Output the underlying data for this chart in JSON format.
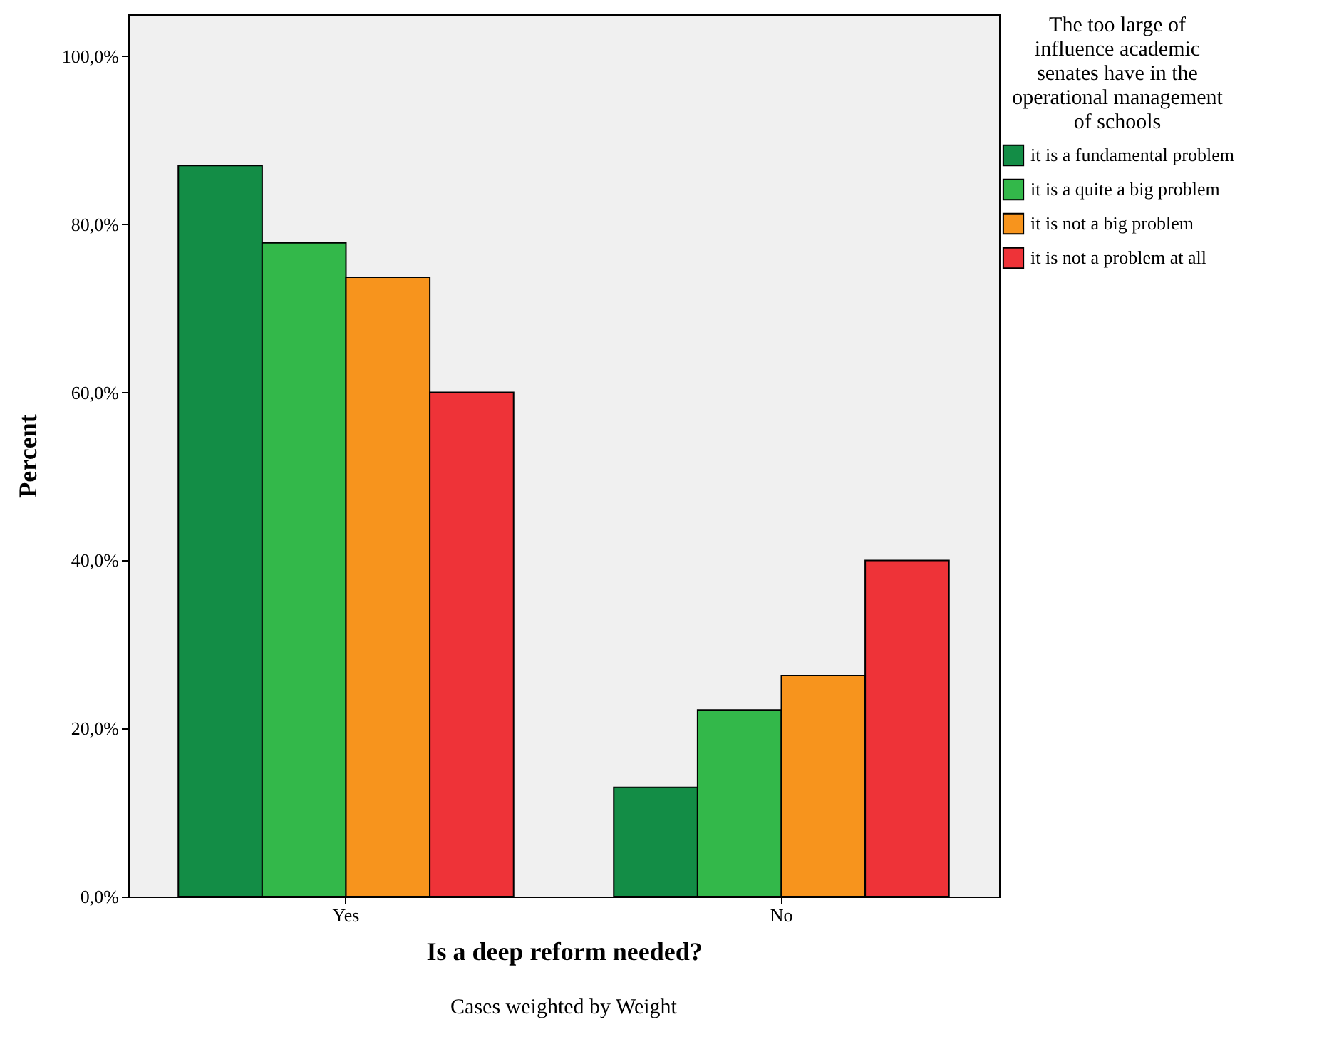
{
  "chart_data": {
    "type": "bar",
    "xlabel": "Is a deep reform needed?",
    "ylabel": "Percent",
    "legend_title": "The too large of influence academic senates have in the operational management of schools",
    "annotations": [
      "Cases weighted by Weight"
    ],
    "categories": [
      "Yes",
      "No"
    ],
    "series": [
      {
        "name": "it is a fundamental problem",
        "color": "#138d46",
        "values": [
          87.0,
          13.0
        ]
      },
      {
        "name": "it is a quite a big problem",
        "color": "#33b84a",
        "values": [
          77.8,
          22.2
        ]
      },
      {
        "name": "it is not a big problem",
        "color": "#f7941d",
        "values": [
          73.7,
          26.3
        ]
      },
      {
        "name": "it is not a problem at all",
        "color": "#ee3338",
        "values": [
          60.0,
          40.0
        ]
      }
    ],
    "ylim": [
      0,
      105
    ],
    "yticks": [
      {
        "value": 0,
        "label": "0,0%"
      },
      {
        "value": 20,
        "label": "20,0%"
      },
      {
        "value": 40,
        "label": "40,0%"
      },
      {
        "value": 60,
        "label": "60,0%"
      },
      {
        "value": 80,
        "label": "80,0%"
      },
      {
        "value": 100,
        "label": "100,0%"
      }
    ],
    "grid": false,
    "legend": "top right"
  }
}
